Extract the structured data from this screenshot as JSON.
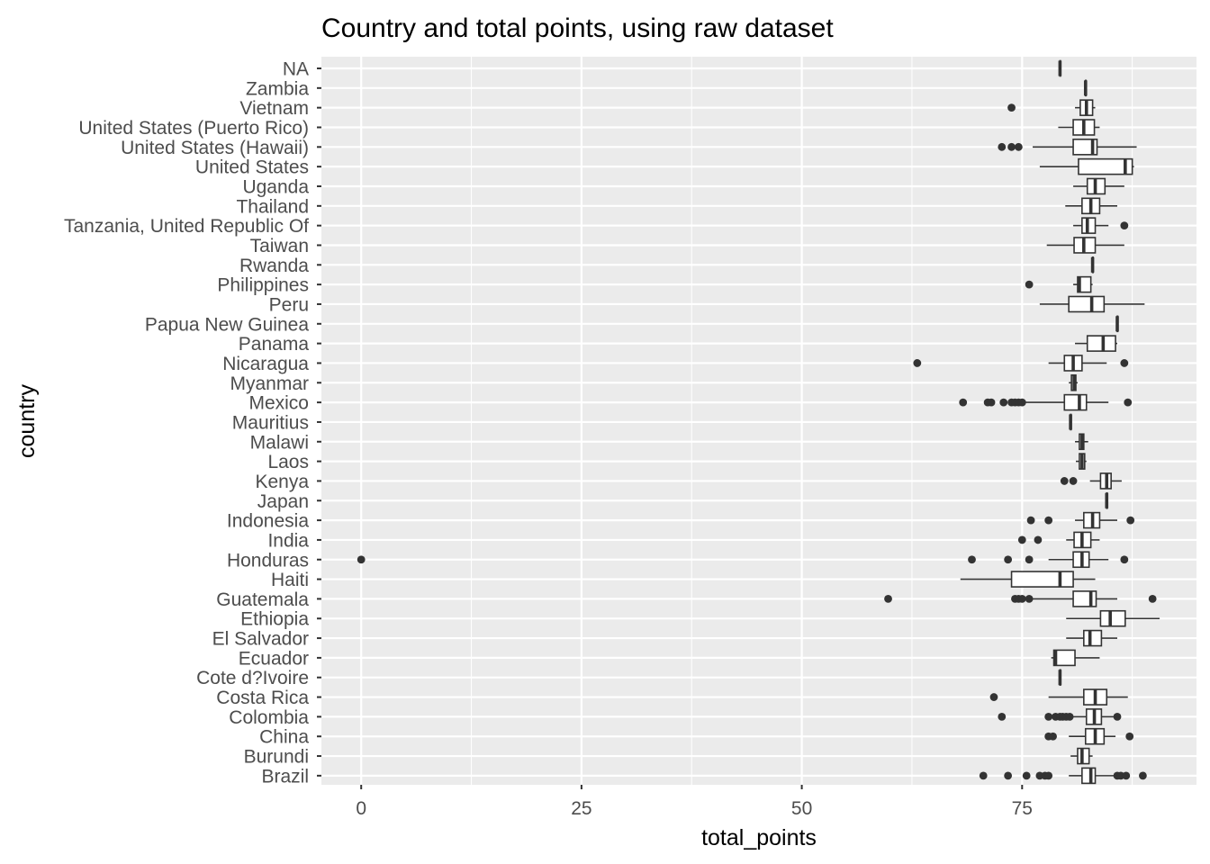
{
  "chart_data": {
    "type": "boxplot",
    "orientation": "horizontal",
    "title": "Country and total points, using raw dataset",
    "xlabel": "total_points",
    "ylabel": "country",
    "xlim": [
      -1.8,
      91.8
    ],
    "xticks": [
      0,
      25,
      50,
      75
    ],
    "grid": true,
    "legend": "none",
    "colors": {
      "panel": "#ebebeb",
      "grid": "#ffffff",
      "box_fill": "#ffffff",
      "box_line": "#333333",
      "outlier": "#333333",
      "text": "#4d4d4d"
    },
    "categories": [
      "NA",
      "Zambia",
      "Vietnam",
      "United States (Puerto Rico)",
      "United States (Hawaii)",
      "United States",
      "Uganda",
      "Thailand",
      "Tanzania, United Republic Of",
      "Taiwan",
      "Rwanda",
      "Philippines",
      "Peru",
      "Papua New Guinea",
      "Panama",
      "Nicaragua",
      "Myanmar",
      "Mexico",
      "Mauritius",
      "Malawi",
      "Laos",
      "Kenya",
      "Japan",
      "Indonesia",
      "India",
      "Honduras",
      "Haiti",
      "Guatemala",
      "Ethiopia",
      "El Salvador",
      "Ecuador",
      "Cote d?Ivoire",
      "Costa Rica",
      "Colombia",
      "China",
      "Burundi",
      "Brazil"
    ],
    "boxes": [
      {
        "country": "NA",
        "min": 79.3,
        "q1": 79.3,
        "median": 79.3,
        "q3": 79.3,
        "max": 79.3,
        "outliers": []
      },
      {
        "country": "Zambia",
        "min": 82.2,
        "q1": 82.2,
        "median": 82.2,
        "q3": 82.2,
        "max": 82.2,
        "outliers": []
      },
      {
        "country": "Vietnam",
        "min": 81.0,
        "q1": 81.6,
        "median": 82.3,
        "q3": 83.0,
        "max": 83.3,
        "outliers": [
          73.8
        ]
      },
      {
        "country": "United States (Puerto Rico)",
        "min": 79.1,
        "q1": 80.8,
        "median": 82.0,
        "q3": 83.2,
        "max": 83.8,
        "outliers": []
      },
      {
        "country": "United States (Hawaii)",
        "min": 76.2,
        "q1": 80.8,
        "median": 83.0,
        "q3": 83.5,
        "max": 88.0,
        "outliers": [
          72.7,
          73.8,
          74.6
        ]
      },
      {
        "country": "United States",
        "min": 77.0,
        "q1": 81.4,
        "median": 86.7,
        "q3": 87.5,
        "max": 87.7,
        "outliers": []
      },
      {
        "country": "Uganda",
        "min": 80.8,
        "q1": 82.4,
        "median": 83.3,
        "q3": 84.4,
        "max": 86.6,
        "outliers": []
      },
      {
        "country": "Thailand",
        "min": 79.9,
        "q1": 81.8,
        "median": 82.8,
        "q3": 83.8,
        "max": 85.8,
        "outliers": []
      },
      {
        "country": "Tanzania, United Republic Of",
        "min": 80.8,
        "q1": 81.8,
        "median": 82.4,
        "q3": 83.3,
        "max": 84.8,
        "outliers": [
          86.6
        ]
      },
      {
        "country": "Taiwan",
        "min": 77.8,
        "q1": 80.9,
        "median": 82.0,
        "q3": 83.3,
        "max": 86.6,
        "outliers": []
      },
      {
        "country": "Rwanda",
        "min": 83.0,
        "q1": 83.0,
        "median": 83.0,
        "q3": 83.0,
        "max": 83.0,
        "outliers": []
      },
      {
        "country": "Philippines",
        "min": 80.8,
        "q1": 81.3,
        "median": 81.5,
        "q3": 82.8,
        "max": 83.0,
        "outliers": [
          75.8
        ]
      },
      {
        "country": "Peru",
        "min": 77.0,
        "q1": 80.3,
        "median": 82.9,
        "q3": 84.3,
        "max": 88.9,
        "outliers": []
      },
      {
        "country": "Papua New Guinea",
        "min": 85.8,
        "q1": 85.8,
        "median": 85.8,
        "q3": 85.8,
        "max": 85.8,
        "outliers": []
      },
      {
        "country": "Panama",
        "min": 81.0,
        "q1": 82.4,
        "median": 84.2,
        "q3": 85.6,
        "max": 85.8,
        "outliers": []
      },
      {
        "country": "Nicaragua",
        "min": 78.0,
        "q1": 79.8,
        "median": 80.8,
        "q3": 81.8,
        "max": 84.6,
        "outliers": [
          63.1,
          86.6
        ]
      },
      {
        "country": "Myanmar",
        "min": 80.3,
        "q1": 80.6,
        "median": 80.9,
        "q3": 81.1,
        "max": 81.3,
        "outliers": []
      },
      {
        "country": "Mexico",
        "min": 75.3,
        "q1": 79.8,
        "median": 81.5,
        "q3": 82.3,
        "max": 84.8,
        "outliers": [
          68.3,
          71.1,
          71.5,
          72.9,
          73.8,
          74.2,
          74.6,
          75.0,
          87.0
        ]
      },
      {
        "country": "Mauritius",
        "min": 80.5,
        "q1": 80.5,
        "median": 80.5,
        "q3": 80.5,
        "max": 80.5,
        "outliers": []
      },
      {
        "country": "Malawi",
        "min": 81.0,
        "q1": 81.5,
        "median": 81.8,
        "q3": 82.0,
        "max": 82.5,
        "outliers": []
      },
      {
        "country": "Laos",
        "min": 81.1,
        "q1": 81.5,
        "median": 81.8,
        "q3": 82.1,
        "max": 82.3,
        "outliers": []
      },
      {
        "country": "Kenya",
        "min": 82.7,
        "q1": 83.9,
        "median": 84.6,
        "q3": 85.1,
        "max": 86.3,
        "outliers": [
          79.8,
          80.8
        ]
      },
      {
        "country": "Japan",
        "min": 84.6,
        "q1": 84.6,
        "median": 84.6,
        "q3": 84.6,
        "max": 84.6,
        "outliers": []
      },
      {
        "country": "Indonesia",
        "min": 81.0,
        "q1": 82.0,
        "median": 83.0,
        "q3": 83.8,
        "max": 85.8,
        "outliers": [
          76.0,
          78.0,
          87.3
        ]
      },
      {
        "country": "India",
        "min": 80.0,
        "q1": 80.9,
        "median": 81.8,
        "q3": 82.8,
        "max": 83.8,
        "outliers": [
          75.0,
          76.8
        ]
      },
      {
        "country": "Honduras",
        "min": 78.0,
        "q1": 80.8,
        "median": 81.8,
        "q3": 82.6,
        "max": 84.8,
        "outliers": [
          0.0,
          69.3,
          73.4,
          75.8,
          86.6
        ]
      },
      {
        "country": "Haiti",
        "min": 68.0,
        "q1": 73.8,
        "median": 79.3,
        "q3": 80.8,
        "max": 83.3,
        "outliers": []
      },
      {
        "country": "Guatemala",
        "min": 76.2,
        "q1": 80.8,
        "median": 82.8,
        "q3": 83.4,
        "max": 85.8,
        "outliers": [
          59.8,
          74.2,
          74.6,
          75.0,
          75.8,
          89.8
        ]
      },
      {
        "country": "Ethiopia",
        "min": 80.0,
        "q1": 83.9,
        "median": 85.0,
        "q3": 86.7,
        "max": 90.6,
        "outliers": []
      },
      {
        "country": "El Salvador",
        "min": 80.0,
        "q1": 82.0,
        "median": 82.7,
        "q3": 84.0,
        "max": 85.8,
        "outliers": []
      },
      {
        "country": "Ecuador",
        "min": 78.3,
        "q1": 78.6,
        "median": 78.8,
        "q3": 81.0,
        "max": 83.8,
        "outliers": []
      },
      {
        "country": "Cote d?Ivoire",
        "min": 79.3,
        "q1": 79.3,
        "median": 79.3,
        "q3": 79.3,
        "max": 79.3,
        "outliers": []
      },
      {
        "country": "Costa Rica",
        "min": 78.0,
        "q1": 82.0,
        "median": 83.3,
        "q3": 84.6,
        "max": 87.0,
        "outliers": [
          71.8
        ]
      },
      {
        "country": "Colombia",
        "min": 80.8,
        "q1": 82.3,
        "median": 83.2,
        "q3": 84.0,
        "max": 85.5,
        "outliers": [
          72.7,
          78.0,
          78.8,
          79.3,
          79.6,
          80.0,
          80.4,
          85.8
        ]
      },
      {
        "country": "China",
        "min": 80.3,
        "q1": 82.2,
        "median": 83.3,
        "q3": 84.3,
        "max": 85.6,
        "outliers": [
          78.0,
          78.5,
          87.2
        ]
      },
      {
        "country": "Burundi",
        "min": 80.5,
        "q1": 81.3,
        "median": 81.8,
        "q3": 82.6,
        "max": 83.0,
        "outliers": []
      },
      {
        "country": "Brazil",
        "min": 80.3,
        "q1": 81.8,
        "median": 82.8,
        "q3": 83.3,
        "max": 85.6,
        "outliers": [
          70.6,
          73.4,
          75.5,
          77.0,
          77.6,
          78.0,
          85.8,
          86.2,
          86.8,
          88.7
        ]
      }
    ]
  }
}
